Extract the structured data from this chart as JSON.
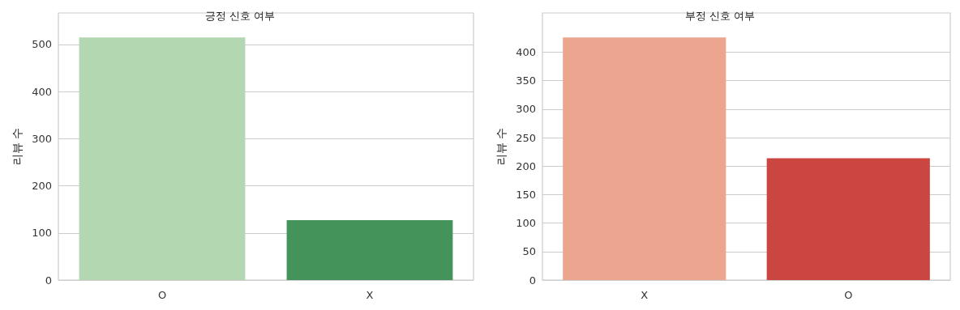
{
  "chart_data": [
    {
      "type": "bar",
      "title": "긍정 신호 여부",
      "ylabel": "리뷰 수",
      "categories": [
        "O",
        "X"
      ],
      "values": [
        515,
        127
      ],
      "colors": [
        "#b3d7b0",
        "#43935b"
      ],
      "ylim": [
        0,
        567
      ],
      "yticks": [
        0,
        100,
        200,
        300,
        400,
        500
      ],
      "grid": "y"
    },
    {
      "type": "bar",
      "title": "부정 신호 여부",
      "ylabel": "리뷰 수",
      "categories": [
        "X",
        "O"
      ],
      "values": [
        426,
        214
      ],
      "colors": [
        "#eca690",
        "#cb4640"
      ],
      "ylim": [
        0,
        469
      ],
      "yticks": [
        0,
        50,
        100,
        150,
        200,
        250,
        300,
        350,
        400
      ],
      "grid": "y"
    }
  ]
}
